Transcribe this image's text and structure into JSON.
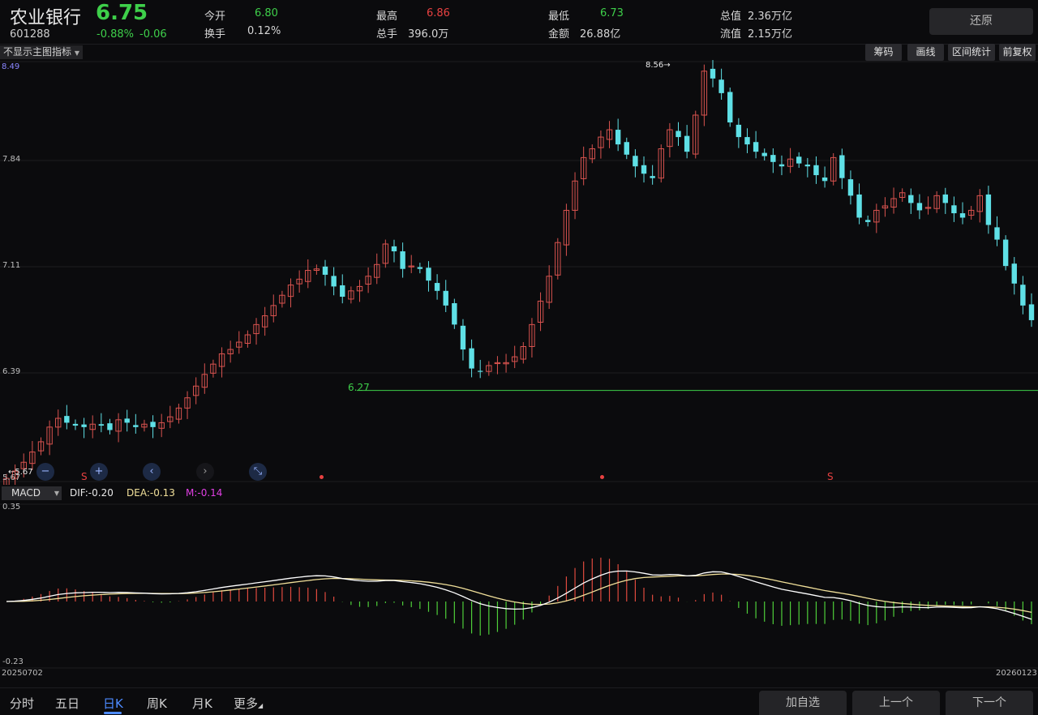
{
  "header": {
    "name": "农业银行",
    "price": "6.75",
    "code": "601288",
    "change_pct": "-0.88%",
    "change_abs": "-0.06",
    "fields": [
      {
        "label": "今开",
        "value": "6.80",
        "color": "green"
      },
      {
        "label": "换手",
        "value": "0.12%",
        "color": "normal"
      },
      {
        "label": "最高",
        "value": "6.86",
        "color": "red"
      },
      {
        "label": "总手",
        "value": "396.0万",
        "color": "normal"
      },
      {
        "label": "最低",
        "value": "6.73",
        "color": "green"
      },
      {
        "label": "金额",
        "value": "26.88亿",
        "color": "normal"
      },
      {
        "label": "总值",
        "value": "2.36万亿",
        "color": "normal"
      },
      {
        "label": "流值",
        "value": "2.15万亿",
        "color": "normal"
      }
    ],
    "restore_label": "还原"
  },
  "toolbar": {
    "indicator_dropdown": "不显示主图指标",
    "buttons": [
      "筹码",
      "画线",
      "区间统计",
      "前复权"
    ]
  },
  "main_chart": {
    "y_ticks": [
      "7.84",
      "7.11",
      "6.39"
    ],
    "top_label": "8.49",
    "bottom_label": "5.67",
    "max_marker": "8.56",
    "min_marker": "5.67",
    "support_line_label": "6.27",
    "markers": [
      "S",
      "S"
    ]
  },
  "macd": {
    "selector": "MACD",
    "dif": "DIF:-0.20",
    "dea": "DEA:-0.13",
    "m": "M:-0.14",
    "y_top": "0.35",
    "y_bottom": "-0.23",
    "date_start": "20250702",
    "date_end": "20260123"
  },
  "tabs": [
    "分时",
    "五日",
    "日K",
    "周K",
    "月K",
    "更多"
  ],
  "bottom_buttons": [
    "加自选",
    "上一个",
    "下一个"
  ],
  "colors": {
    "up": "#d9534f",
    "down": "#5fe0e6",
    "green": "#3ecf4a",
    "red": "#e84141",
    "accent": "#4d8bff",
    "dif_line": "#ffffff",
    "dea_line": "#f1e09a",
    "m_label": "#e03fe3"
  },
  "chart_data": {
    "type": "candlestick",
    "ylim": [
      5.67,
      8.49
    ],
    "highest": 8.56,
    "lowest": 5.67,
    "support": 6.27,
    "closes_approx": [
      5.67,
      5.72,
      5.78,
      5.85,
      5.92,
      6.02,
      6.08,
      6.05,
      6.03,
      6.02,
      6.04,
      6.03,
      6.0,
      6.07,
      6.05,
      6.02,
      6.04,
      6.02,
      6.05,
      6.09,
      6.15,
      6.22,
      6.3,
      6.38,
      6.45,
      6.52,
      6.55,
      6.6,
      6.65,
      6.72,
      6.78,
      6.85,
      6.92,
      6.99,
      7.03,
      7.09,
      7.1,
      7.06,
      6.98,
      6.91,
      6.95,
      6.98,
      7.05,
      7.13,
      7.27,
      7.22,
      7.1,
      7.12,
      7.1,
      7.02,
      6.95,
      6.85,
      6.72,
      6.55,
      6.42,
      6.4,
      6.44,
      6.46,
      6.46,
      6.5,
      6.57,
      6.72,
      6.88,
      7.05,
      7.28,
      7.5,
      7.7,
      7.86,
      7.92,
      8.0,
      8.05,
      7.95,
      7.88,
      7.8,
      7.75,
      7.72,
      7.92,
      8.05,
      8.0,
      7.9,
      8.15,
      8.45,
      8.4,
      8.3,
      8.1,
      8.0,
      7.95,
      7.9,
      7.87,
      7.83,
      7.8,
      7.85,
      7.82,
      7.8,
      7.74,
      7.7,
      7.86,
      7.72,
      7.6,
      7.45,
      7.42,
      7.5,
      7.53,
      7.58,
      7.62,
      7.55,
      7.5,
      7.52,
      7.6,
      7.55,
      7.48,
      7.45,
      7.5,
      7.6,
      7.4,
      7.3,
      7.12,
      7.0,
      6.85,
      6.75
    ]
  }
}
